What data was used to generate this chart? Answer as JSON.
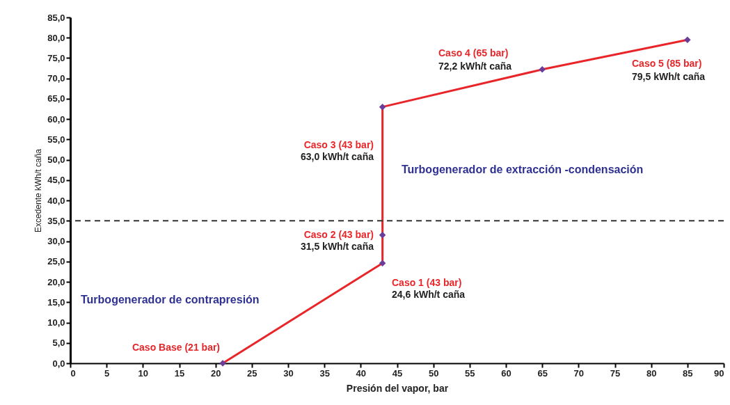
{
  "chart_data": {
    "type": "line",
    "xlabel": "Presión del vapor, bar",
    "ylabel": "Excedente kWh/t caña",
    "x": [
      21,
      43,
      43,
      43,
      65,
      85
    ],
    "series": [
      {
        "color": "#e8262a",
        "values": [
          0,
          24.6,
          31.5,
          63.0,
          72.2,
          79.5
        ]
      }
    ],
    "marker": "diamond",
    "line_style": "solid",
    "grid": false,
    "xlim": [
      0,
      90
    ],
    "xticks": [
      0,
      5,
      10,
      15,
      20,
      25,
      30,
      35,
      40,
      45,
      50,
      55,
      60,
      65,
      70,
      75,
      80,
      85,
      90
    ],
    "ylim": [
      0,
      85
    ],
    "yticks": [
      {
        "value": 0,
        "label": "0,0"
      },
      {
        "value": 5,
        "label": "5,0"
      },
      {
        "value": 10,
        "label": "10,0"
      },
      {
        "value": 15,
        "label": "15,0"
      },
      {
        "value": 20,
        "label": "20,0"
      },
      {
        "value": 25,
        "label": "25,0"
      },
      {
        "value": 30,
        "label": "30,0"
      },
      {
        "value": 35,
        "label": "35,0"
      },
      {
        "value": 40,
        "label": "40,0"
      },
      {
        "value": 45,
        "label": "45,0"
      },
      {
        "value": 50,
        "label": "50,0"
      },
      {
        "value": 55,
        "label": "55,0"
      },
      {
        "value": 60,
        "label": "60,0"
      },
      {
        "value": 65,
        "label": "65,0"
      },
      {
        "value": 70,
        "label": "70,0"
      },
      {
        "value": 75,
        "label": "75,0"
      },
      {
        "value": 80,
        "label": "80,0"
      },
      {
        "value": 85,
        "label": "85,0"
      }
    ],
    "ref_lines": [
      {
        "axis": "y",
        "value": 35,
        "color": "#333333",
        "line_style": "dashed"
      }
    ],
    "annotations": [
      "Caso Base (21 bar)",
      "Caso 1 (43 bar)",
      "24,6 kWh/t caña",
      "Caso 2 (43 bar)",
      "31,5 kWh/t caña",
      "Caso 3 (43 bar)",
      "63,0 kWh/t caña",
      "Caso 4 (65 bar)",
      "72,2 kWh/t caña",
      "Caso 5 (85 bar)",
      "79,5 kWh/t caña",
      "Turbogenerador de contrapresión",
      "Turbogenerador de extracción -condensación"
    ]
  }
}
